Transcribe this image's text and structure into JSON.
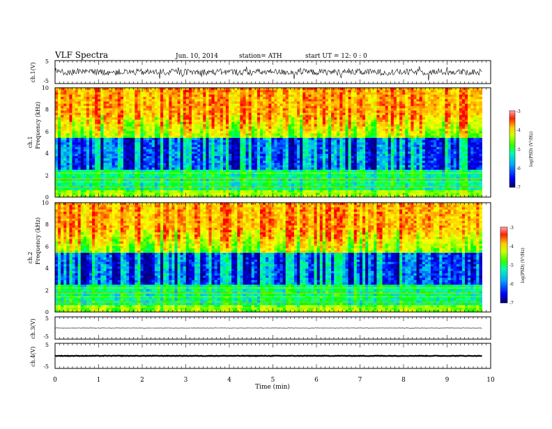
{
  "header": {
    "title": "VLF  Spectra",
    "date": "Jun. 10, 2014",
    "station": "station= ATH",
    "start": "start  UT  =    12: 0   : 0"
  },
  "chart_data": [
    {
      "type": "line",
      "panel": "ch1-waveform",
      "ylabel": "ch.1(V)",
      "ylim": [
        -5,
        5
      ],
      "yticks": [
        "5",
        "-5"
      ],
      "level": 0
    },
    {
      "type": "heatmap",
      "panel": "ch1-spectrogram",
      "ylabel_line1": "ch.1",
      "ylabel_line2": "Frequency  (kHz)",
      "ylim": [
        0,
        10
      ],
      "yticks": [
        "0",
        "2",
        "4",
        "6",
        "8",
        "10"
      ],
      "xlim_min": [
        0,
        9.8
      ],
      "colorbar": {
        "label": "log(PSD) (V²/Hz)",
        "min": -7,
        "max": -3,
        "ticks": [
          "-3",
          "-4",
          "-5",
          "-6",
          "-7"
        ]
      }
    },
    {
      "type": "heatmap",
      "panel": "ch2-spectrogram",
      "ylabel_line1": "ch.2",
      "ylabel_line2": "Frequency  (kHz)",
      "ylim": [
        0,
        10
      ],
      "yticks": [
        "0",
        "2",
        "4",
        "6",
        "8",
        "10"
      ],
      "xlim_min": [
        0,
        9.8
      ],
      "colorbar": {
        "label": "log(PSD) (V²/Hz)",
        "min": -7,
        "max": -3,
        "ticks": [
          "-3",
          "-4",
          "-5",
          "-6",
          "-7"
        ]
      }
    },
    {
      "type": "line",
      "panel": "ch3-waveform",
      "ylabel": "ch.3(V)",
      "ylim": [
        -5,
        5
      ],
      "yticks": [
        "5",
        "-5"
      ],
      "level": 0
    },
    {
      "type": "line",
      "panel": "ch4-waveform",
      "ylabel": "ch.4(V)",
      "ylim": [
        -5,
        5
      ],
      "yticks": [
        "5",
        "-5"
      ],
      "level": 0
    }
  ],
  "xaxis": {
    "label": "Time  (min)",
    "range": [
      0,
      10
    ],
    "ticks": [
      "0",
      "1",
      "2",
      "3",
      "4",
      "5",
      "6",
      "7",
      "8",
      "9",
      "10"
    ]
  },
  "colors": {
    "trace": "#000000",
    "frame": "#000000",
    "colormap": [
      "#000080",
      "#0000ff",
      "#00aaff",
      "#00ffaa",
      "#00ff00",
      "#aaff00",
      "#ffff00",
      "#ffaa00",
      "#ff0000"
    ]
  }
}
